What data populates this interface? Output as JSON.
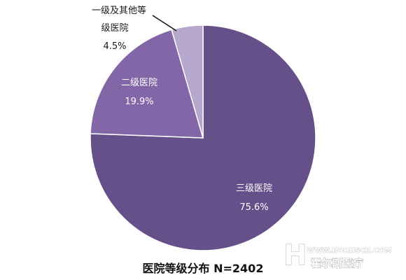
{
  "chart_data": {
    "type": "pie",
    "title": "医院等级分布 N=2402",
    "legend": "none",
    "slices": [
      {
        "label": "三级医院",
        "value": 75.6,
        "value_label": "75.6%",
        "color": "#66508a",
        "label_color": "#ffffff"
      },
      {
        "label": "二级医院",
        "value": 19.9,
        "value_label": "19.9%",
        "color": "#8266a8",
        "label_color": "#ffffff"
      },
      {
        "label": "一级及其他等级医院",
        "label_lines": [
          "一级及其他等",
          "级医院"
        ],
        "value": 4.5,
        "value_label": "4.5%",
        "color": "#b6a7cc",
        "label_color": "#1a1a1a"
      }
    ]
  },
  "watermark": {
    "url": "WWW.HORUSCH.COM",
    "name": "霍尔斯医疗",
    "mark": "H"
  }
}
